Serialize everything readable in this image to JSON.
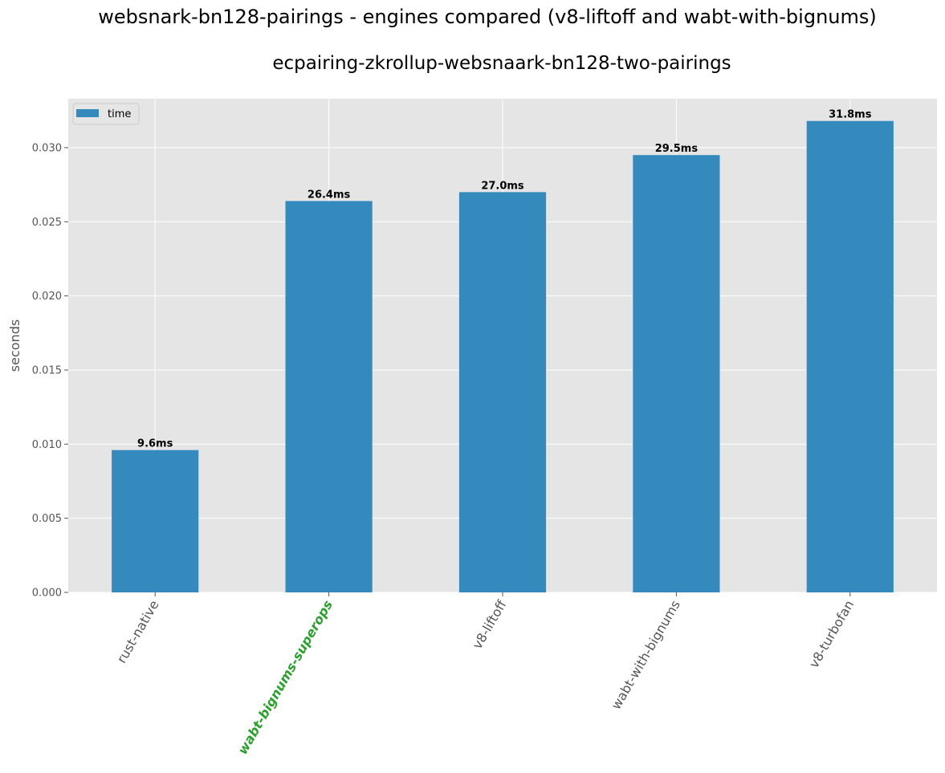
{
  "suptitle": "websnark-bn128-pairings - engines compared (v8-liftoff and wabt-with-bignums)",
  "chart_data": {
    "type": "bar",
    "title": "ecpairing-zkrollup-websnaark-bn128-two-pairings",
    "xlabel": "",
    "ylabel": "seconds",
    "categories": [
      "rust-native",
      "wabt-bignums-superops",
      "v8-liftoff",
      "wabt-with-bignums",
      "v8-turbofan"
    ],
    "highlight_category": "wabt-bignums-superops",
    "highlight_color": "#2ca02c",
    "series": [
      {
        "name": "time",
        "color": "#348abd",
        "values": [
          0.0096,
          0.0264,
          0.027,
          0.0295,
          0.0318
        ],
        "labels": [
          "9.6ms",
          "26.4ms",
          "27.0ms",
          "29.5ms",
          "31.8ms"
        ]
      }
    ],
    "ylim": [
      0,
      0.0333
    ],
    "yticks": [
      "0.000",
      "0.005",
      "0.010",
      "0.015",
      "0.020",
      "0.025",
      "0.030"
    ],
    "ytick_values": [
      0,
      0.005,
      0.01,
      0.015,
      0.02,
      0.025,
      0.03
    ],
    "grid": true,
    "legend": "upper-left",
    "background": "#e5e5e5"
  }
}
